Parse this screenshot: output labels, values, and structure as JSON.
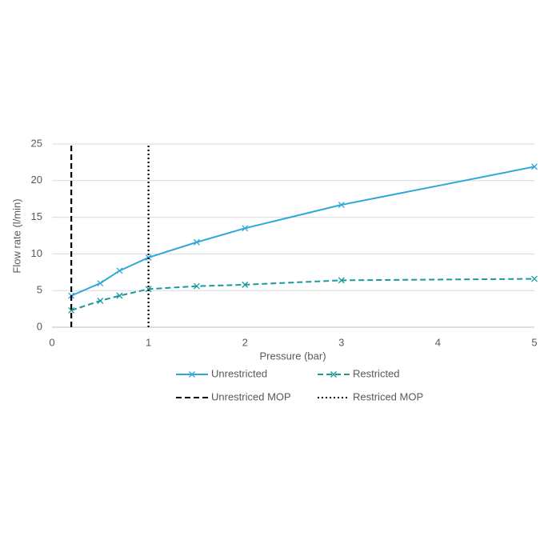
{
  "chart_data": {
    "type": "line",
    "x_label": "Pressure (bar)",
    "y_label": "Flow rate (l/min)",
    "xlim": [
      0,
      5
    ],
    "xticks": [
      0,
      1,
      2,
      3,
      4,
      5
    ],
    "ylim": [
      0,
      25
    ],
    "yticks": [
      0,
      5,
      10,
      15,
      20,
      25
    ],
    "grid": true,
    "legend": "bottom",
    "series": [
      {
        "name": "Unrestricted",
        "color": "#2ea8d8",
        "line_style": "solid",
        "marker": "x",
        "x": [
          0.2,
          0.5,
          0.7,
          1.0,
          1.5,
          2,
          3,
          5
        ],
        "values": [
          4.3,
          6.0,
          7.7,
          9.5,
          11.6,
          13.5,
          16.7,
          21.9
        ]
      },
      {
        "name": "Restricted",
        "color": "#1a9a9a",
        "line_style": "dashed",
        "marker": "x",
        "x": [
          0.2,
          0.5,
          0.7,
          1.0,
          1.5,
          2,
          3,
          5
        ],
        "values": [
          2.3,
          3.6,
          4.3,
          5.2,
          5.6,
          5.8,
          6.4,
          6.6
        ]
      },
      {
        "name": "Unrestriced MOP",
        "color": "#000000",
        "line_style": "dashed",
        "x": [
          0.2,
          0.2
        ],
        "values": [
          0,
          25
        ]
      },
      {
        "name": "Restriced MOP",
        "color": "#000000",
        "line_style": "dotted",
        "x": [
          1,
          1
        ],
        "values": [
          0,
          25
        ]
      }
    ]
  }
}
